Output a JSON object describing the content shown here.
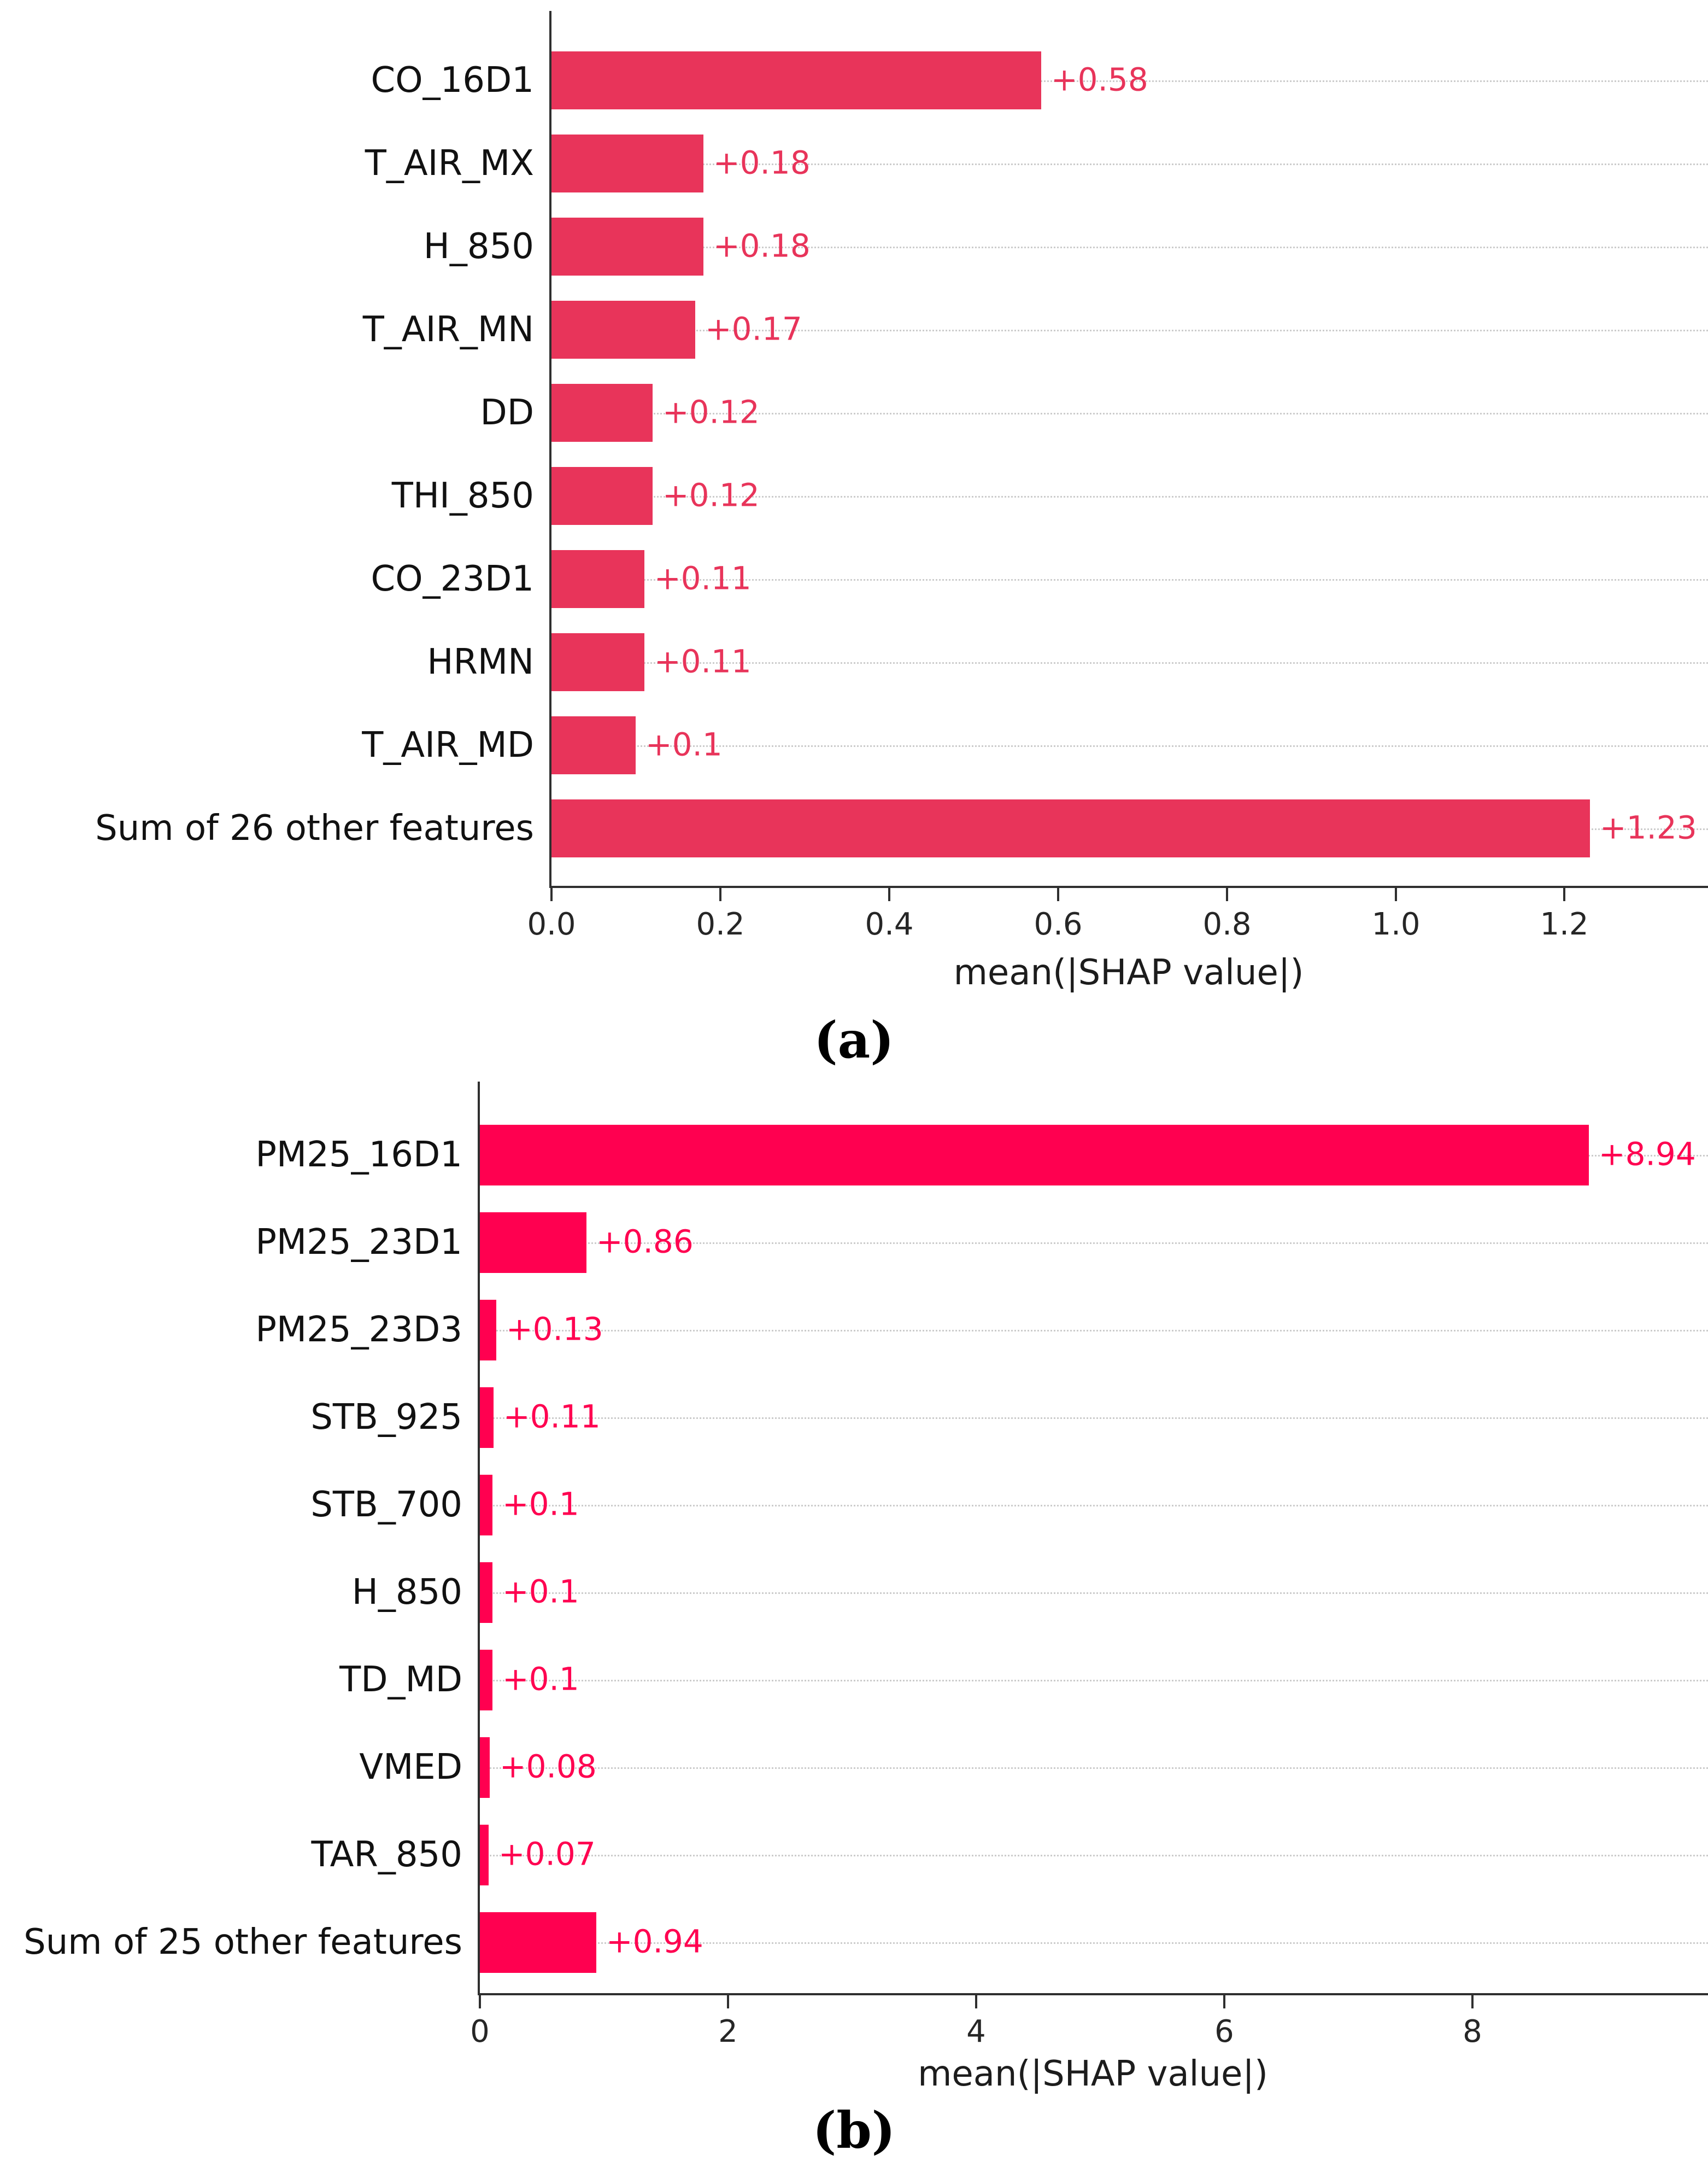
{
  "page": {
    "background_color": "#ffffff"
  },
  "chart_data": [
    {
      "type": "bar",
      "orientation": "horizontal",
      "title": "",
      "xlabel": "mean(|SHAP value|)",
      "ylabel": "",
      "caption": "(a)",
      "categories": [
        "CO_16D1",
        "T_AIR_MX",
        "H_850",
        "T_AIR_MN",
        "DD",
        "THI_850",
        "CO_23D1",
        "HRMN",
        "T_AIR_MD",
        "Sum of 26 other features"
      ],
      "values": [
        0.58,
        0.18,
        0.18,
        0.17,
        0.12,
        0.12,
        0.11,
        0.11,
        0.1,
        1.23
      ],
      "value_labels": [
        "+0.58",
        "+0.18",
        "+0.18",
        "+0.17",
        "+0.12",
        "+0.12",
        "+0.11",
        "+0.11",
        "+0.1",
        "+1.23"
      ],
      "xlim": [
        0,
        1.37
      ],
      "xticks": [
        0,
        0.2,
        0.4,
        0.6,
        0.8,
        1.0,
        1.2
      ],
      "xtick_labels": [
        "0.0",
        "0.2",
        "0.4",
        "0.6",
        "0.8",
        "1.0",
        "1.2"
      ],
      "grid": "horizontal dotted per-row",
      "legend": "none",
      "bar_color": "#e8345a",
      "value_color": "#e8345a",
      "grid_color": "#cccccc",
      "axis_color": "#2f2f2f"
    },
    {
      "type": "bar",
      "orientation": "horizontal",
      "title": "",
      "xlabel": "mean(|SHAP value|)",
      "ylabel": "",
      "caption": "(b)",
      "categories": [
        "PM25_16D1",
        "PM25_23D1",
        "PM25_23D3",
        "STB_925",
        "STB_700",
        "H_850",
        "TD_MD",
        "VMED",
        "TAR_850",
        "Sum of 25 other features"
      ],
      "values": [
        8.94,
        0.86,
        0.13,
        0.11,
        0.1,
        0.1,
        0.1,
        0.08,
        0.07,
        0.94
      ],
      "value_labels": [
        "+8.94",
        "+0.86",
        "+0.13",
        "+0.11",
        "+0.1",
        "+0.1",
        "+0.1",
        "+0.08",
        "+0.07",
        "+0.94"
      ],
      "xlim": [
        0,
        9.9
      ],
      "xticks": [
        0,
        2,
        4,
        6,
        8
      ],
      "xtick_labels": [
        "0",
        "2",
        "4",
        "6",
        "8"
      ],
      "grid": "horizontal dotted per-row",
      "legend": "none",
      "bar_color": "#ff0050",
      "value_color": "#ff0050",
      "grid_color": "#cccccc",
      "axis_color": "#2f2f2f"
    }
  ]
}
